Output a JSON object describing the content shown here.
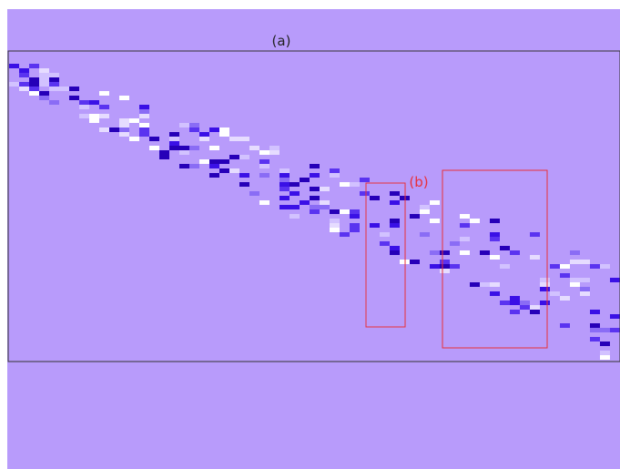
{
  "figure": {
    "panel_label": "(a)",
    "region_label": "(b)"
  }
}
